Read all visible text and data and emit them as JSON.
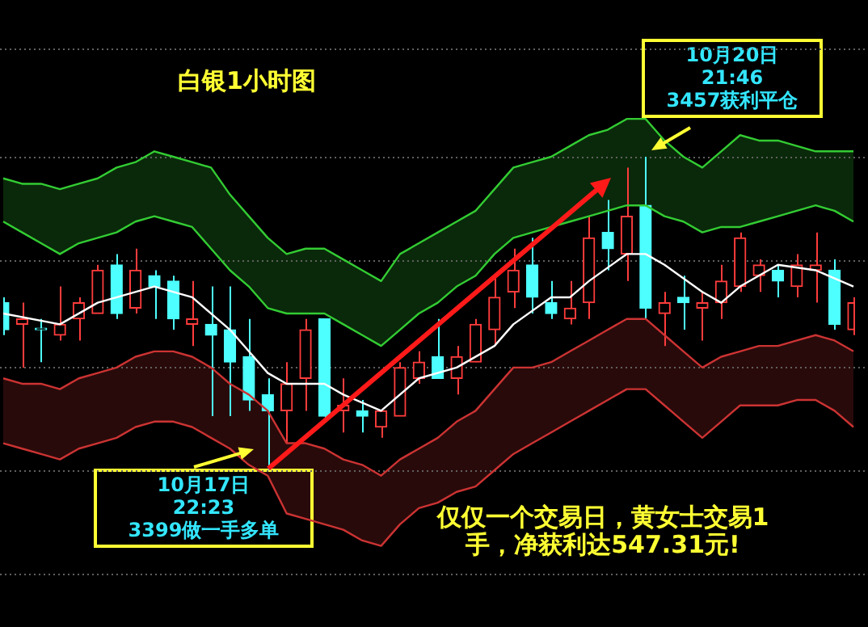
{
  "chart_data": {
    "type": "candlestick",
    "title": "白银1小时图",
    "annotations": [
      "10月17日\n22:23\n3399做一手多单",
      "10月20日\n21:46\n3457获利平仓",
      "仅仅一个交易日，黄女士交易1手，净获利达547.31元!"
    ],
    "categories": [
      null,
      null,
      null,
      null,
      null,
      null,
      null,
      null,
      null,
      null,
      null,
      null,
      null,
      null,
      null,
      null,
      null,
      null,
      null,
      null,
      null,
      null,
      null,
      null,
      null,
      null,
      null,
      null,
      null,
      null,
      null,
      null,
      null,
      null,
      null,
      null,
      null,
      null,
      null,
      null,
      null,
      null,
      null,
      null,
      null,
      null
    ],
    "ohlc": [
      [
        3430,
        3431,
        3424,
        3425
      ],
      [
        3426,
        3430,
        3418,
        3427
      ],
      [
        3425,
        3427,
        3419,
        3425
      ],
      [
        3424,
        3433,
        3423,
        3426
      ],
      [
        3427,
        3431,
        3423,
        3430
      ],
      [
        3428,
        3437,
        3428,
        3436
      ],
      [
        3437,
        3439,
        3427,
        3428
      ],
      [
        3429,
        3440,
        3428,
        3436
      ],
      [
        3435,
        3436,
        3427,
        3433
      ],
      [
        3434,
        3435,
        3425,
        3427
      ],
      [
        3426,
        3434,
        3422,
        3427
      ],
      [
        3426,
        3433,
        3409,
        3424
      ],
      [
        3425,
        3433,
        3409,
        3419
      ],
      [
        3420,
        3427,
        3410,
        3412
      ],
      [
        3413,
        3416,
        3399,
        3410
      ],
      [
        3410,
        3419,
        3404,
        3415
      ],
      [
        3416,
        3427,
        3410,
        3425
      ],
      [
        3427,
        3427,
        3408,
        3409
      ],
      [
        3410,
        3416,
        3406,
        3411
      ],
      [
        3410,
        3412,
        3406,
        3409
      ],
      [
        3407,
        3410,
        3405,
        3410
      ],
      [
        3409,
        3419,
        3409,
        3418
      ],
      [
        3416,
        3421,
        3415,
        3419
      ],
      [
        3420,
        3427,
        3416,
        3416
      ],
      [
        3416,
        3422,
        3413,
        3420
      ],
      [
        3419,
        3427,
        3419,
        3426
      ],
      [
        3425,
        3435,
        3422,
        3431
      ],
      [
        3432,
        3440,
        3429,
        3436
      ],
      [
        3437,
        3442,
        3428,
        3431
      ],
      [
        3430,
        3434,
        3427,
        3428
      ],
      [
        3427,
        3434,
        3426,
        3429
      ],
      [
        3430,
        3446,
        3427,
        3442
      ],
      [
        3443,
        3449,
        3436,
        3440
      ],
      [
        3439,
        3455,
        3434,
        3446
      ],
      [
        3448,
        3457,
        3427,
        3429
      ],
      [
        3428,
        3432,
        3422,
        3430
      ],
      [
        3431,
        3435,
        3425,
        3430
      ],
      [
        3429,
        3432,
        3423,
        3430
      ],
      [
        3430,
        3437,
        3427,
        3434
      ],
      [
        3433,
        3443,
        3432,
        3442
      ],
      [
        3435,
        3438,
        3432,
        3437
      ],
      [
        3436,
        3437,
        3431,
        3434
      ],
      [
        3433,
        3439,
        3431,
        3437
      ],
      [
        3436,
        3443,
        3430,
        3437
      ],
      [
        3436,
        3438,
        3425,
        3426
      ],
      [
        3425,
        3431,
        3424,
        3430
      ]
    ],
    "colors": [
      "#4dffff",
      "#ff3c3c",
      "#4dffff",
      "#ff3c3c",
      "#ff3c3c",
      "#ff3c3c",
      "#4dffff",
      "#ff3c3c",
      "#4dffff",
      "#4dffff",
      "#ff3c3c",
      "#4dffff",
      "#4dffff",
      "#4dffff",
      "#4dffff",
      "#ff3c3c",
      "#ff3c3c",
      "#4dffff",
      "#ff3c3c",
      "#4dffff",
      "#ff3c3c",
      "#ff3c3c",
      "#ff3c3c",
      "#4dffff",
      "#ff3c3c",
      "#ff3c3c",
      "#ff3c3c",
      "#ff3c3c",
      "#4dffff",
      "#4dffff",
      "#ff3c3c",
      "#ff3c3c",
      "#4dffff",
      "#ff3c3c",
      "#4dffff",
      "#ff3c3c",
      "#4dffff",
      "#ff3c3c",
      "#ff3c3c",
      "#ff3c3c",
      "#ff3c3c",
      "#4dffff",
      "#ff3c3c",
      "#ff3c3c",
      "#4dffff",
      "#ff3c3c"
    ],
    "series": [
      {
        "type": "line",
        "color": "#33cc33",
        "values": [
          3453,
          3452,
          3452,
          3451,
          3452,
          3453,
          3455,
          3456,
          3458,
          3457,
          3456,
          3455,
          3450,
          3446,
          3442,
          3439,
          3440,
          3440,
          3438,
          3436,
          3434,
          3439,
          3441,
          3443,
          3445,
          3447,
          3451,
          3455,
          3456,
          3457,
          3459,
          3461,
          3462,
          3464,
          3464,
          3460,
          3457,
          3455,
          3458,
          3461,
          3460,
          3460,
          3459,
          3458,
          3458,
          3458
        ]
      },
      {
        "type": "line",
        "color": "#33cc33",
        "values": [
          3445,
          3443,
          3441,
          3439,
          3441,
          3442,
          3443,
          3445,
          3446,
          3445,
          3444,
          3440,
          3436,
          3433,
          3429,
          3428,
          3428,
          3428,
          3426,
          3424,
          3422,
          3425,
          3428,
          3430,
          3433,
          3435,
          3439,
          3442,
          3443,
          3444,
          3445,
          3446,
          3447,
          3448,
          3448,
          3446,
          3445,
          3443,
          3444,
          3444,
          3445,
          3446,
          3447,
          3448,
          3447,
          3445
        ]
      },
      {
        "type": "line",
        "color": "#cc3333",
        "values": [
          3416,
          3415,
          3415,
          3414,
          3416,
          3417,
          3418,
          3420,
          3421,
          3421,
          3420,
          3418,
          3415,
          3413,
          3410,
          3404,
          3404,
          3403,
          3401,
          3400,
          3398,
          3401,
          3403,
          3405,
          3408,
          3410,
          3414,
          3418,
          3418,
          3419,
          3421,
          3423,
          3425,
          3427,
          3427,
          3424,
          3421,
          3418,
          3420,
          3421,
          3422,
          3422,
          3423,
          3424,
          3423,
          3421
        ]
      },
      {
        "type": "line",
        "color": "#cc3333",
        "values": [
          3404,
          3403,
          3402,
          3401,
          3403,
          3404,
          3405,
          3407,
          3408,
          3408,
          3407,
          3405,
          3403,
          3400,
          3398,
          3391,
          3390,
          3389,
          3388,
          3386,
          3385,
          3389,
          3392,
          3393,
          3395,
          3396,
          3399,
          3402,
          3404,
          3406,
          3408,
          3410,
          3412,
          3414,
          3414,
          3411,
          3408,
          3405,
          3408,
          3411,
          3411,
          3411,
          3412,
          3412,
          3410,
          3407
        ]
      },
      {
        "type": "line",
        "color": "#ffffff",
        "values": [
          3428,
          null,
          null,
          3426,
          null,
          3430,
          null,
          null,
          3433,
          null,
          3431,
          null,
          3425,
          3421,
          3417,
          3415,
          null,
          3415,
          3413,
          null,
          3410,
          null,
          3416,
          null,
          3418,
          null,
          3422,
          3426,
          null,
          3431,
          3431,
          3434,
          null,
          3439,
          3439,
          3437,
          null,
          3432,
          3430,
          3433,
          null,
          3437,
          null,
          3436,
          null,
          3433
        ]
      }
    ],
    "ylim": [
      3370,
      3486
    ],
    "yticks": [
      {
        "value": 3380,
        "label": null
      },
      {
        "value": 3399,
        "label": null
      },
      {
        "value": 3418,
        "label": null
      },
      {
        "value": 3438,
        "label": null
      },
      {
        "value": 3457,
        "label": null
      },
      {
        "value": 3477,
        "label": null
      }
    ],
    "grid": "y",
    "tick_labels": false
  }
}
